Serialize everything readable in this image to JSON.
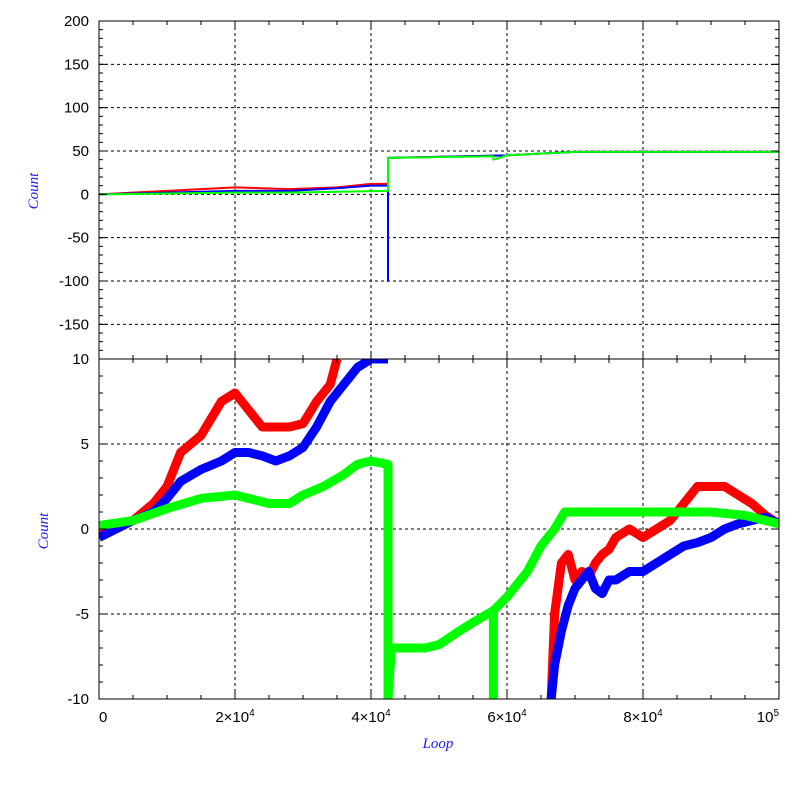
{
  "chart_data": [
    {
      "type": "line",
      "panel": "top",
      "xlabel": "",
      "ylabel": "Count",
      "xlim": [
        0,
        100000
      ],
      "ylim": [
        -190,
        200
      ],
      "yticks": [
        200,
        150,
        100,
        50,
        0,
        -50,
        -100,
        -150
      ],
      "ytick_labels": [
        "200",
        "150",
        "100",
        "50",
        "0",
        "-50",
        "-100",
        "-150"
      ],
      "grid": true,
      "series": [
        {
          "color": "#ff0000",
          "x": [
            0,
            10000,
            20000,
            28000,
            35000,
            40000,
            42500,
            42500,
            60000,
            70000,
            80000,
            100000
          ],
          "y": [
            0,
            4,
            8,
            6,
            8,
            12,
            12,
            42,
            45,
            49,
            49,
            49
          ]
        },
        {
          "color": "#0000ff",
          "x": [
            0,
            10000,
            20000,
            28000,
            35000,
            40000,
            42500,
            42500,
            42500,
            60000,
            70000,
            80000,
            100000
          ],
          "y": [
            0,
            2,
            4,
            4,
            7,
            10,
            10,
            -100,
            42,
            45,
            49,
            49,
            49
          ]
        },
        {
          "color": "#00ff00",
          "x": [
            0,
            10000,
            20000,
            28000,
            35000,
            42500,
            42500,
            58000,
            58000,
            60000,
            70000,
            80000,
            100000
          ],
          "y": [
            0,
            1,
            2,
            2,
            3,
            4,
            42,
            44,
            40,
            45,
            49,
            49,
            49
          ]
        }
      ]
    },
    {
      "type": "line",
      "panel": "bottom",
      "xlabel": "Loop",
      "ylabel": "Count",
      "xlim": [
        0,
        100000
      ],
      "ylim": [
        -10,
        10
      ],
      "yticks": [
        10,
        5,
        0,
        -5,
        -10
      ],
      "ytick_labels": [
        "10",
        "5",
        "0",
        "-5",
        "-10"
      ],
      "xticks": [
        0,
        20000,
        40000,
        60000,
        80000,
        100000
      ],
      "xtick_labels": [
        {
          "base": "0",
          "exp": ""
        },
        {
          "base": "2×10",
          "exp": "4"
        },
        {
          "base": "4×10",
          "exp": "4"
        },
        {
          "base": "6×10",
          "exp": "4"
        },
        {
          "base": "8×10",
          "exp": "4"
        },
        {
          "base": "10",
          "exp": "5"
        }
      ],
      "grid": true,
      "series": [
        {
          "color": "#ff0000",
          "x": [
            0,
            5000,
            8000,
            10000,
            12000,
            15000,
            18000,
            20000,
            22000,
            24000,
            26000,
            28000,
            30000,
            32000,
            34000,
            35000,
            37000,
            66500,
            67000,
            68000,
            69000,
            70000,
            71000,
            72000,
            73000,
            74000,
            75000,
            76000,
            78000,
            80000,
            82000,
            84000,
            86000,
            88000,
            90000,
            92000,
            94000,
            96000,
            98000,
            100000
          ],
          "y": [
            0,
            0.5,
            1.5,
            2.5,
            4.5,
            5.5,
            7.5,
            8.0,
            7.0,
            6.0,
            6.0,
            6.0,
            6.2,
            7.5,
            8.5,
            10,
            null,
            -10,
            -5,
            -2.0,
            -1.5,
            -3.0,
            -2.5,
            -2.8,
            -2.0,
            -1.5,
            -1.2,
            -0.5,
            0,
            -0.5,
            0,
            0.5,
            1.5,
            2.5,
            2.5,
            2.5,
            2.0,
            1.5,
            0.8,
            0.3
          ]
        },
        {
          "color": "#0000ff",
          "x": [
            0,
            5000,
            8000,
            10000,
            12000,
            15000,
            18000,
            20000,
            22000,
            24000,
            26000,
            28000,
            30000,
            32000,
            34000,
            36000,
            38000,
            40000,
            42500,
            42500,
            66500,
            67000,
            68000,
            69000,
            70000,
            72000,
            73000,
            74000,
            75000,
            76000,
            78000,
            80000,
            82000,
            84000,
            86000,
            88000,
            90000,
            92000,
            94000,
            96000,
            98000,
            100000
          ],
          "y": [
            -0.5,
            0.5,
            1.0,
            1.8,
            2.8,
            3.5,
            4.0,
            4.5,
            4.5,
            4.3,
            4.0,
            4.3,
            4.8,
            6.0,
            7.5,
            8.5,
            9.5,
            10,
            10,
            null,
            -10,
            -8,
            -6,
            -4.5,
            -3.5,
            -2.5,
            -3.5,
            -3.8,
            -3.0,
            -3.0,
            -2.5,
            -2.5,
            -2.0,
            -1.5,
            -1.0,
            -0.8,
            -0.5,
            0,
            0.3,
            0.5,
            0.7,
            0.3
          ]
        },
        {
          "color": "#00ff00",
          "x": [
            0,
            5000,
            10000,
            15000,
            20000,
            22000,
            25000,
            28000,
            30000,
            33000,
            36000,
            38000,
            40000,
            42500,
            42500,
            43000,
            46000,
            48000,
            50000,
            53000,
            55000,
            58000,
            58000,
            58000,
            60000,
            63000,
            65000,
            67000,
            68500,
            70000,
            75000,
            80000,
            85000,
            90000,
            95000,
            100000
          ],
          "y": [
            0.2,
            0.5,
            1.2,
            1.8,
            2.0,
            1.8,
            1.5,
            1.5,
            2.0,
            2.5,
            3.2,
            3.8,
            4.0,
            3.8,
            -10,
            -7.0,
            -7.0,
            -7.0,
            -6.8,
            -6.0,
            -5.5,
            -4.8,
            -10,
            -4.8,
            -4.0,
            -2.5,
            -1.0,
            0,
            1.0,
            1.0,
            1.0,
            1.0,
            1.0,
            1.0,
            0.8,
            0.3
          ]
        }
      ]
    }
  ],
  "colors": {
    "axis_title": "#1a1aff",
    "grid": "#000000",
    "frame": "#000000"
  }
}
